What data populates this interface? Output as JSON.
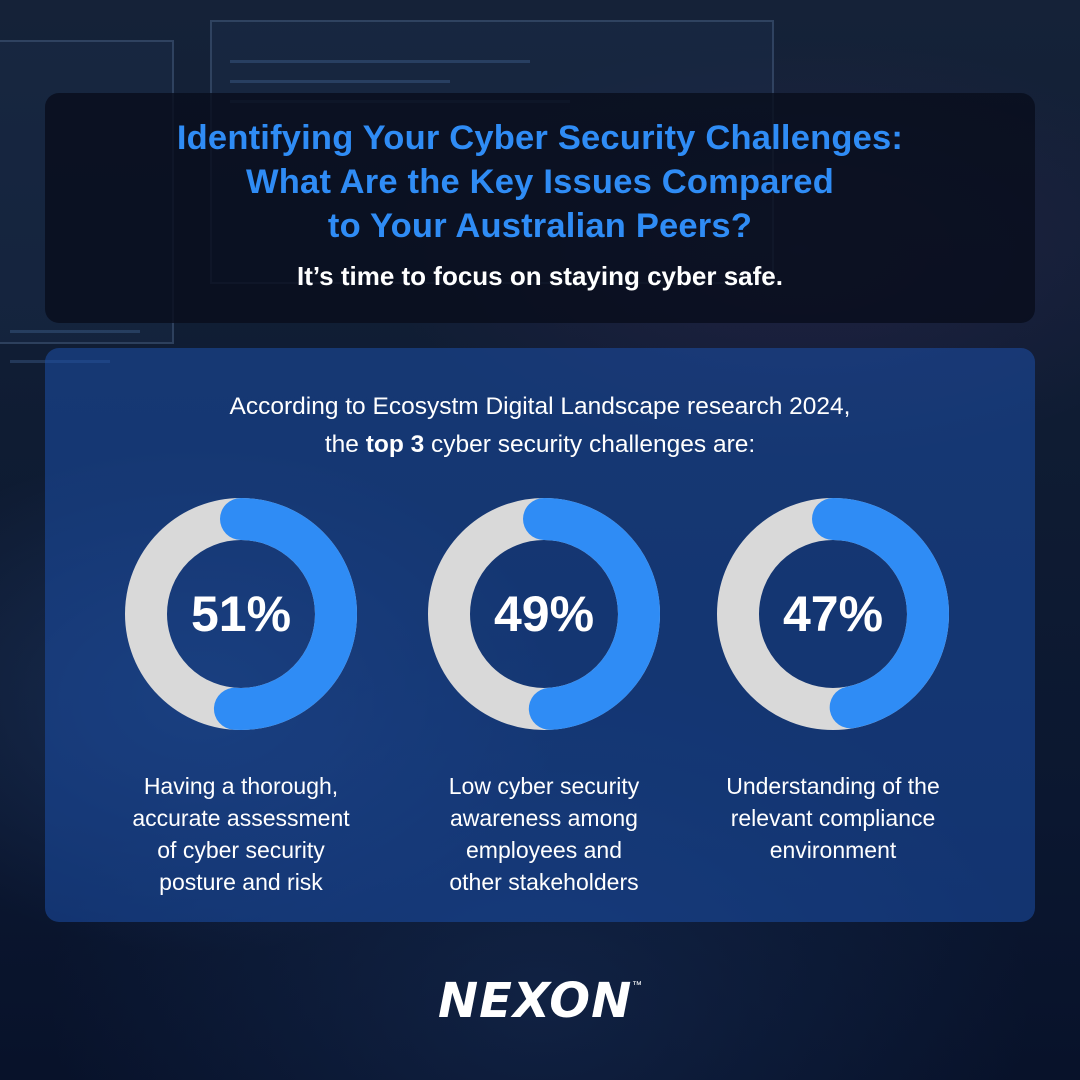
{
  "header": {
    "title_lines": [
      "Identifying Your Cyber Security Challenges:",
      "What Are the Key Issues Compared",
      "to Your Australian Peers?"
    ],
    "subtitle": "It’s time to focus on staying cyber safe."
  },
  "intro": {
    "line1": "According to Ecosystm Digital Landscape research 2024,",
    "line2_prefix": "the ",
    "line2_bold": "top 3",
    "line2_suffix": " cyber security challenges are:"
  },
  "chart_data": {
    "type": "pie",
    "subtype": "donut",
    "series": [
      {
        "value": 51,
        "label": "51%",
        "caption_lines": [
          "Having a thorough,",
          "accurate assessment",
          "of cyber security",
          "posture and risk"
        ]
      },
      {
        "value": 49,
        "label": "49%",
        "caption_lines": [
          "Low cyber security",
          "awareness among",
          "employees and",
          "other stakeholders"
        ]
      },
      {
        "value": 47,
        "label": "47%",
        "caption_lines": [
          "Understanding of the",
          "relevant compliance",
          "environment"
        ]
      }
    ],
    "colors": {
      "filled": "#2f8cf5",
      "remainder": "#d9d9d9"
    }
  },
  "brand": {
    "logo": "NEXON",
    "trademark": "™"
  },
  "colors": {
    "accent": "#2f8cf5",
    "panel": "#1c4ea8"
  }
}
